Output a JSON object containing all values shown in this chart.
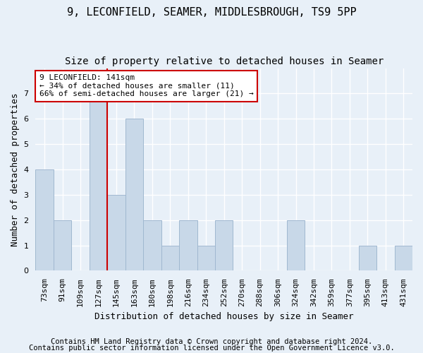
{
  "title_line1": "9, LECONFIELD, SEAMER, MIDDLESBROUGH, TS9 5PP",
  "title_line2": "Size of property relative to detached houses in Seamer",
  "xlabel": "Distribution of detached houses by size in Seamer",
  "ylabel": "Number of detached properties",
  "categories": [
    "73sqm",
    "91sqm",
    "109sqm",
    "127sqm",
    "145sqm",
    "163sqm",
    "180sqm",
    "198sqm",
    "216sqm",
    "234sqm",
    "252sqm",
    "270sqm",
    "288sqm",
    "306sqm",
    "324sqm",
    "342sqm",
    "359sqm",
    "377sqm",
    "395sqm",
    "413sqm",
    "431sqm"
  ],
  "values": [
    4,
    2,
    0,
    7,
    3,
    6,
    2,
    1,
    2,
    1,
    2,
    0,
    0,
    0,
    2,
    0,
    0,
    0,
    1,
    0,
    1
  ],
  "bar_color": "#c8d8e8",
  "bar_edge_color": "#a0b8d0",
  "highlight_line_color": "#cc0000",
  "highlight_bin_index": 3,
  "annotation_text": "9 LECONFIELD: 141sqm\n← 34% of detached houses are smaller (11)\n66% of semi-detached houses are larger (21) →",
  "annotation_box_color": "#ffffff",
  "annotation_box_edge": "#cc0000",
  "ylim": [
    0,
    8
  ],
  "yticks": [
    0,
    1,
    2,
    3,
    4,
    5,
    6,
    7
  ],
  "footer_line1": "Contains HM Land Registry data © Crown copyright and database right 2024.",
  "footer_line2": "Contains public sector information licensed under the Open Government Licence v3.0.",
  "background_color": "#e8f0f8",
  "grid_color": "#ffffff",
  "title_fontsize": 11,
  "subtitle_fontsize": 10,
  "axis_label_fontsize": 9,
  "tick_fontsize": 8,
  "annotation_fontsize": 8,
  "footer_fontsize": 7.5
}
